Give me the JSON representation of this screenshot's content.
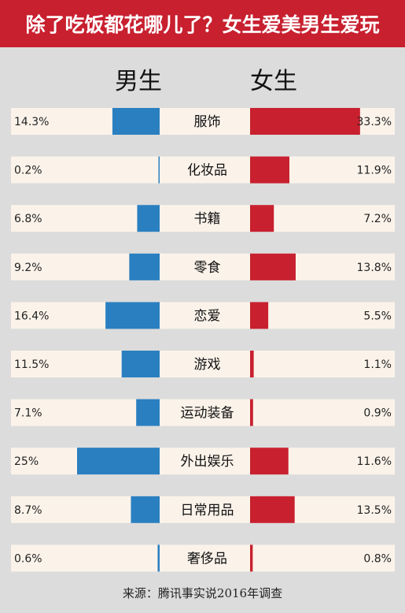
{
  "header": {
    "title": "除了吃饭都花哪儿了？女生爱美男生爱玩"
  },
  "legend": {
    "male": "男生",
    "female": "女生"
  },
  "footer": {
    "source": "来源：腾讯事实说2016年调查"
  },
  "chart_data": {
    "type": "bar",
    "title": "除了吃饭都花哪儿了？女生爱美男生爱玩",
    "xlabel": "",
    "ylabel": "",
    "categories": [
      "服饰",
      "化妆品",
      "书籍",
      "零食",
      "恋爱",
      "游戏",
      "运动装备",
      "外出娱乐",
      "日常用品",
      "奢侈品"
    ],
    "series": [
      {
        "name": "男生",
        "values": [
          14.3,
          0.2,
          6.8,
          9.2,
          16.4,
          11.5,
          7.1,
          25,
          8.7,
          0.6
        ],
        "labels": [
          "14.3%",
          "0.2%",
          "6.8%",
          "9.2%",
          "16.4%",
          "11.5%",
          "7.1%",
          "25%",
          "8.7%",
          "0.6%"
        ]
      },
      {
        "name": "女生",
        "values": [
          33.3,
          11.9,
          7.2,
          13.8,
          5.5,
          1.1,
          0.9,
          11.6,
          13.5,
          0.8
        ],
        "labels": [
          "33.3%",
          "11.9%",
          "7.2%",
          "13.8%",
          "5.5%",
          "1.1%",
          "0.9%",
          "11.6%",
          "13.5%",
          "0.8%"
        ]
      }
    ],
    "colors": {
      "male": "#2a7fc0",
      "female": "#c8202f",
      "row": "#fbf3ea",
      "background": "#dcdcdc"
    },
    "grid": false
  }
}
